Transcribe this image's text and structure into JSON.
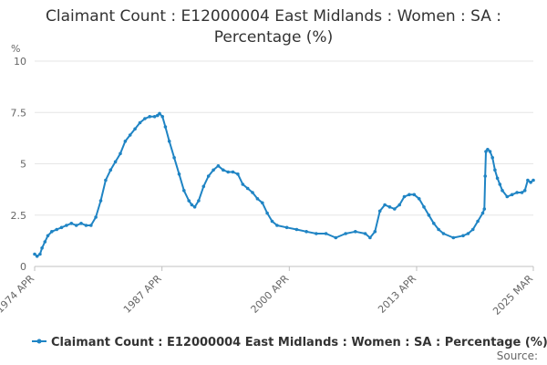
{
  "chart_data": {
    "type": "line",
    "title_lines": [
      "Claimant Count : E12000004 East Midlands : Women : SA :",
      "Percentage (%)"
    ],
    "ylabel": "%",
    "ylim": [
      0,
      10
    ],
    "yticks": [
      0,
      2.5,
      5,
      7.5,
      10
    ],
    "ytick_labels": [
      "0",
      "2.5",
      "5",
      "7.5",
      "10"
    ],
    "xlim": [
      1974.25,
      2025.167
    ],
    "xticks": [
      {
        "label": "1974 APR",
        "x": 1974.25
      },
      {
        "label": "1987 APR",
        "x": 1987.25
      },
      {
        "label": "2000 APR",
        "x": 2000.25
      },
      {
        "label": "2013 APR",
        "x": 2013.25
      },
      {
        "label": "2025 MAR",
        "x": 2025.167
      }
    ],
    "grid": "horizontal",
    "legend_position": "bottom",
    "source_label": "Source:",
    "series": [
      {
        "name": "Claimant Count : E12000004 East Midlands : Women : SA : Percentage (%)",
        "color": "#1f84c4",
        "x": [
          1974.25,
          1974.5,
          1974.8,
          1975.0,
          1975.3,
          1975.6,
          1976.0,
          1976.5,
          1977.0,
          1977.5,
          1978.0,
          1978.5,
          1979.0,
          1979.5,
          1980.0,
          1980.5,
          1981.0,
          1981.5,
          1982.0,
          1982.5,
          1983.0,
          1983.5,
          1984.0,
          1984.5,
          1985.0,
          1985.5,
          1986.0,
          1986.5,
          1986.8,
          1987.0,
          1987.3,
          1987.6,
          1988.0,
          1988.5,
          1989.0,
          1989.5,
          1990.0,
          1990.3,
          1990.6,
          1991.0,
          1991.5,
          1992.0,
          1992.5,
          1993.0,
          1993.5,
          1994.0,
          1994.5,
          1995.0,
          1995.5,
          1996.0,
          1996.5,
          1997.0,
          1997.5,
          1998.0,
          1998.5,
          1999.0,
          2000.0,
          2001.0,
          2002.0,
          2003.0,
          2004.0,
          2005.0,
          2006.0,
          2007.0,
          2008.0,
          2008.5,
          2009.0,
          2009.5,
          2010.0,
          2010.5,
          2011.0,
          2011.5,
          2012.0,
          2012.5,
          2013.0,
          2013.5,
          2014.0,
          2014.5,
          2015.0,
          2015.5,
          2016.0,
          2017.0,
          2018.0,
          2018.5,
          2019.0,
          2019.5,
          2020.0,
          2020.17,
          2020.25,
          2020.33,
          2020.5,
          2020.75,
          2021.0,
          2021.25,
          2021.5,
          2021.75,
          2022.0,
          2022.5,
          2023.0,
          2023.5,
          2024.0,
          2024.3,
          2024.6,
          2024.9,
          2025.167
        ],
        "y": [
          0.6,
          0.5,
          0.6,
          0.9,
          1.2,
          1.5,
          1.7,
          1.8,
          1.9,
          2.0,
          2.1,
          2.0,
          2.1,
          2.0,
          2.0,
          2.4,
          3.2,
          4.2,
          4.7,
          5.1,
          5.5,
          6.1,
          6.4,
          6.7,
          7.0,
          7.2,
          7.3,
          7.3,
          7.35,
          7.45,
          7.3,
          6.8,
          6.1,
          5.3,
          4.5,
          3.7,
          3.2,
          3.0,
          2.9,
          3.2,
          3.9,
          4.4,
          4.7,
          4.9,
          4.7,
          4.6,
          4.6,
          4.5,
          4.0,
          3.8,
          3.6,
          3.3,
          3.1,
          2.6,
          2.2,
          2.0,
          1.9,
          1.8,
          1.7,
          1.6,
          1.6,
          1.4,
          1.6,
          1.7,
          1.6,
          1.4,
          1.7,
          2.7,
          3.0,
          2.9,
          2.8,
          3.0,
          3.4,
          3.5,
          3.5,
          3.3,
          2.9,
          2.5,
          2.1,
          1.8,
          1.6,
          1.4,
          1.5,
          1.6,
          1.8,
          2.2,
          2.6,
          2.8,
          4.4,
          5.6,
          5.7,
          5.6,
          5.3,
          4.7,
          4.3,
          4.0,
          3.7,
          3.4,
          3.5,
          3.6,
          3.6,
          3.7,
          4.2,
          4.1,
          4.2
        ]
      }
    ]
  }
}
